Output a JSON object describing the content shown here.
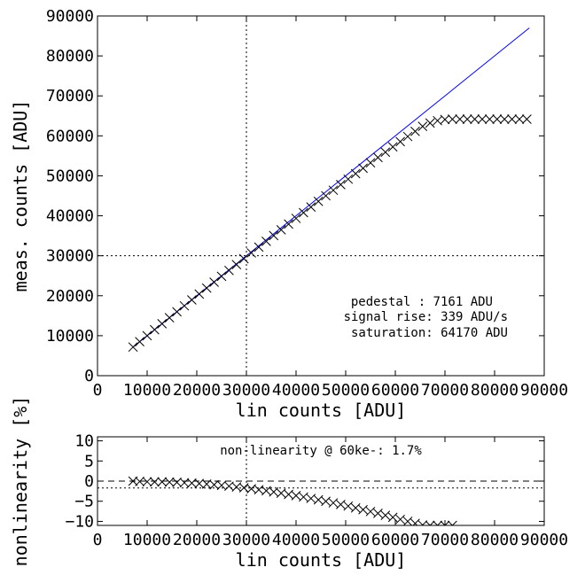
{
  "chart_data": [
    {
      "type": "line",
      "xlabel": "lin counts [ADU]",
      "ylabel": "meas. counts [ADU]",
      "xlim": [
        0,
        90000
      ],
      "ylim": [
        0,
        90000
      ],
      "xticks": [
        "0",
        "10000",
        "20000",
        "30000",
        "40000",
        "50000",
        "60000",
        "70000",
        "80000",
        "90000"
      ],
      "yticks": [
        "0",
        "10000",
        "20000",
        "30000",
        "40000",
        "50000",
        "60000",
        "70000",
        "80000",
        "90000"
      ],
      "grid": false,
      "annotations": [
        "pedestal    : 7161 ADU",
        "signal rise: 339 ADU/s",
        "saturation: 64170 ADU"
      ],
      "reference_lines": {
        "x": 30000,
        "y": 30000
      },
      "series": [
        {
          "style": "blue line",
          "color": "#0000ff",
          "x": [
            7161,
            87000
          ],
          "y": [
            7161,
            87000
          ]
        },
        {
          "style": "black x markers",
          "color": "#000000",
          "x": [
            7161,
            8500,
            10000,
            11500,
            13000,
            14500,
            16000,
            17500,
            19000,
            20500,
            22000,
            23500,
            25000,
            26500,
            28000,
            29500,
            31000,
            32500,
            34000,
            35500,
            37000,
            38500,
            40000,
            41500,
            43000,
            44500,
            46000,
            47500,
            49000,
            50500,
            52000,
            53500,
            55000,
            56500,
            58000,
            59500,
            61000,
            62500,
            64000,
            65500,
            67000,
            68500,
            70000,
            71500,
            73000,
            74500,
            76000,
            77500,
            79000,
            80500,
            82000,
            83500,
            85000,
            86500
          ],
          "y": [
            7161,
            8500,
            10000,
            11500,
            13000,
            14490,
            15980,
            17470,
            18950,
            20430,
            21910,
            23390,
            24860,
            26330,
            27800,
            29260,
            30720,
            32170,
            33620,
            35060,
            36500,
            37930,
            39360,
            40780,
            42200,
            43610,
            45010,
            46400,
            47790,
            49170,
            50540,
            51900,
            53250,
            54590,
            55920,
            57240,
            58550,
            59840,
            61120,
            62380,
            63200,
            63800,
            64100,
            64170,
            64170,
            64170,
            64170,
            64170,
            64170,
            64170,
            64170,
            64170,
            64170,
            64170
          ]
        }
      ]
    },
    {
      "type": "line",
      "xlabel": "lin counts [ADU]",
      "ylabel": "nonlinearity [%]",
      "xlim": [
        0,
        90000
      ],
      "ylim": [
        -11,
        11
      ],
      "xticks": [
        "0",
        "10000",
        "20000",
        "30000",
        "40000",
        "50000",
        "60000",
        "70000",
        "80000",
        "90000"
      ],
      "yticks": [
        "10",
        "5",
        "0",
        "−5",
        "−10"
      ],
      "grid": false,
      "annotations": [
        "non-linearity @ 60ke-: 1.7%"
      ],
      "reference_lines": {
        "x": 30000,
        "y_dashed": 0,
        "y_dotted": -1.7
      },
      "series": [
        {
          "style": "black x markers",
          "color": "#000000",
          "x": [
            7161,
            8500,
            10000,
            11500,
            13000,
            14500,
            16000,
            17500,
            19000,
            20500,
            22000,
            23500,
            25000,
            26500,
            28000,
            29500,
            31000,
            32500,
            34000,
            35500,
            37000,
            38500,
            40000,
            41500,
            43000,
            44500,
            46000,
            47500,
            49000,
            50500,
            52000,
            53500,
            55000,
            56500,
            58000,
            59500,
            61000,
            62500,
            64000,
            65500,
            67000,
            68500,
            70000,
            71500
          ],
          "y": [
            0.0,
            -0.1,
            -0.15,
            -0.2,
            -0.2,
            -0.25,
            -0.3,
            -0.4,
            -0.5,
            -0.6,
            -0.75,
            -0.9,
            -1.05,
            -1.25,
            -1.45,
            -1.65,
            -1.9,
            -2.15,
            -2.4,
            -2.7,
            -3.0,
            -3.3,
            -3.6,
            -3.95,
            -4.3,
            -4.65,
            -5.0,
            -5.4,
            -5.8,
            -6.2,
            -6.65,
            -7.1,
            -7.55,
            -8.0,
            -8.5,
            -9.0,
            -9.5,
            -10.0,
            -10.5,
            -10.9,
            -11.0,
            -11.0,
            -11.0,
            -11.0
          ]
        }
      ]
    }
  ]
}
